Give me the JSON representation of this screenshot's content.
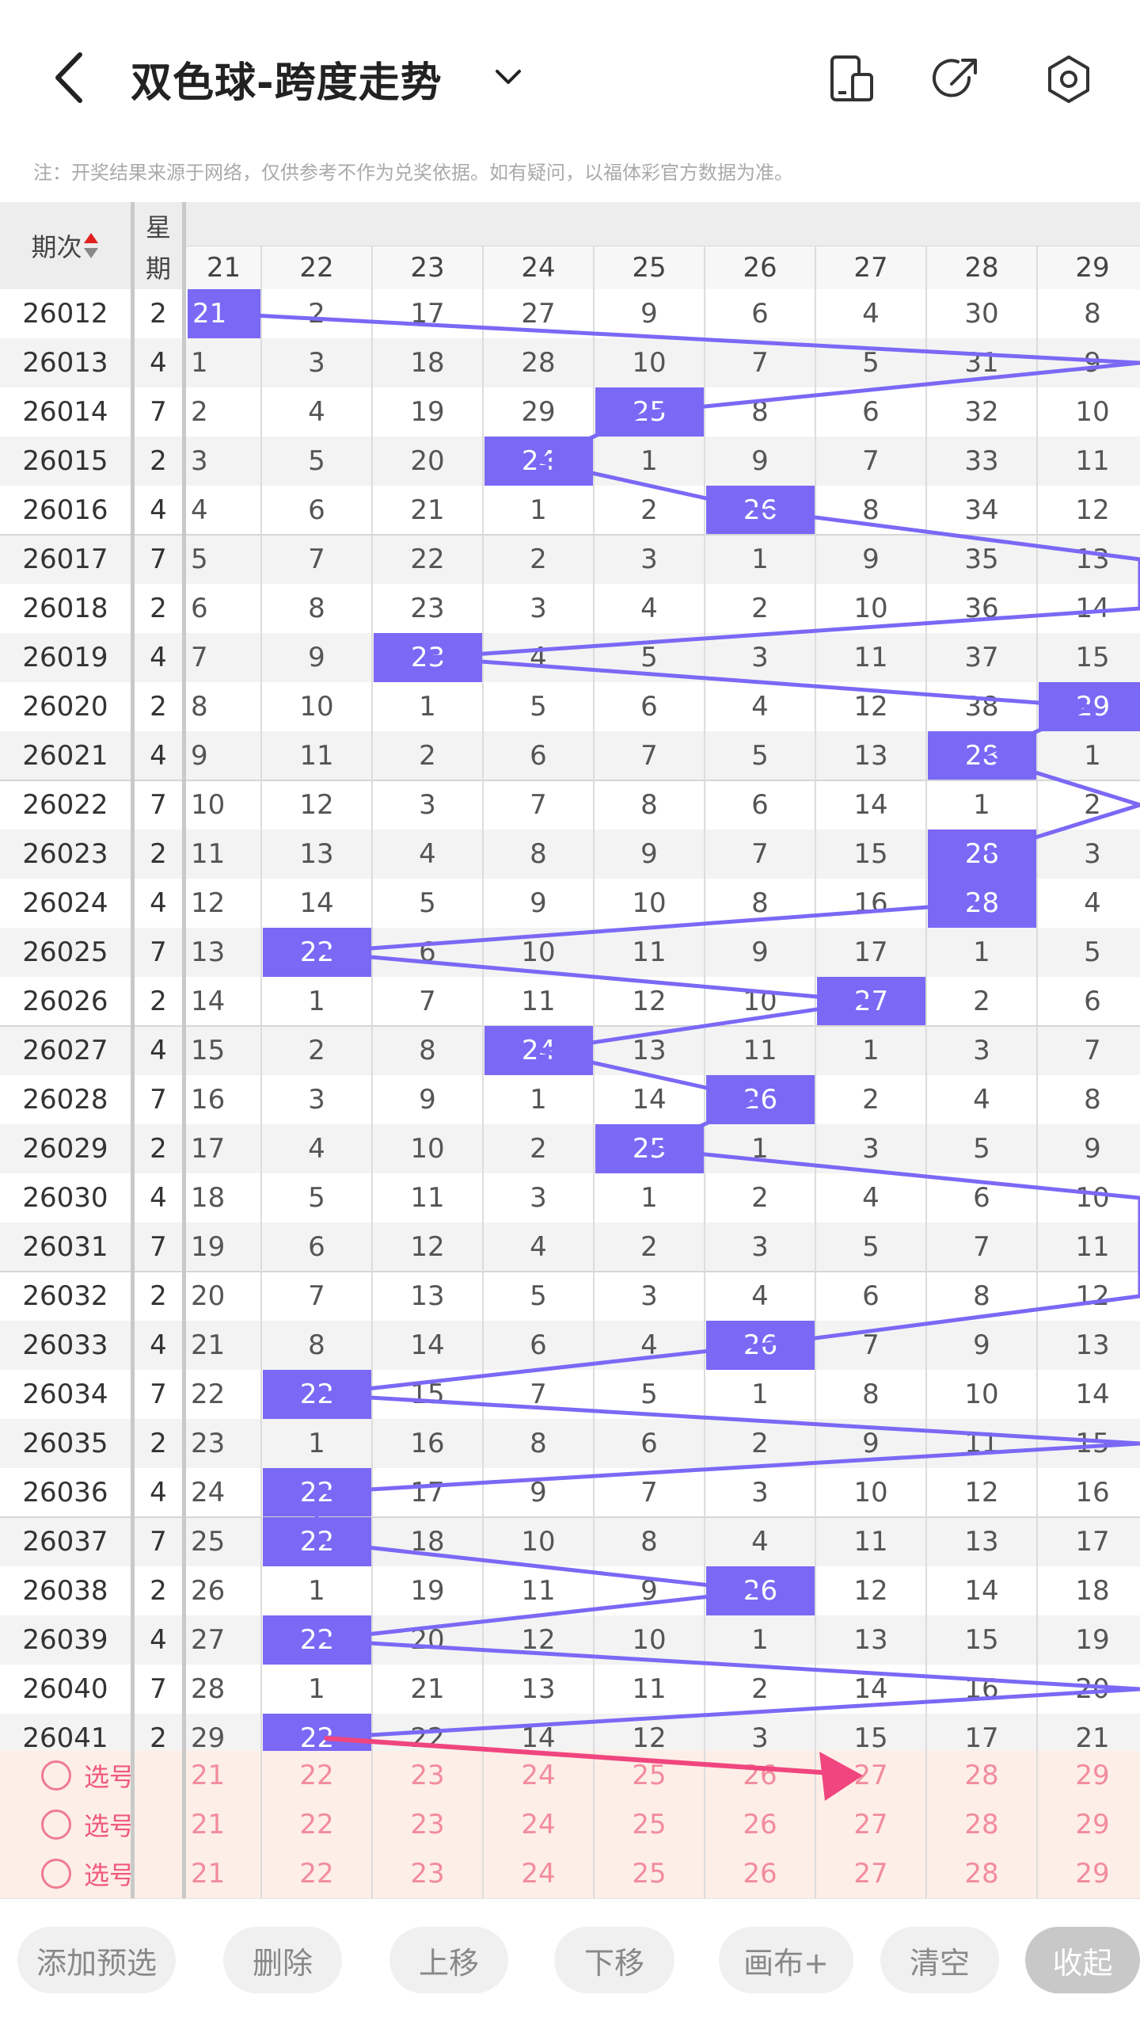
{
  "header": {
    "title": "双色球-跨度走势",
    "icons": [
      "back-icon",
      "chevron-down-icon",
      "phone-layout-icon",
      "share-icon",
      "settings-icon"
    ]
  },
  "note": "注：开奖结果来源于网络，仅供参考不作为兑奖依据。如有疑问，以福体彩官方数据为准。",
  "table": {
    "header_period": "期次",
    "header_weekday_top": "星",
    "header_weekday_bottom": "期",
    "columns": [
      "21",
      "22",
      "23",
      "24",
      "25",
      "26",
      "27",
      "28",
      "29"
    ],
    "rows": [
      {
        "period": "26012",
        "weekday": "2",
        "hit": 0,
        "cells": [
          "21",
          "2",
          "17",
          "27",
          "9",
          "6",
          "4",
          "30",
          "8"
        ]
      },
      {
        "period": "26013",
        "weekday": "4",
        "hit": -1,
        "cells": [
          "1",
          "3",
          "18",
          "28",
          "10",
          "7",
          "5",
          "31",
          "9"
        ]
      },
      {
        "period": "26014",
        "weekday": "7",
        "hit": 4,
        "cells": [
          "2",
          "4",
          "19",
          "29",
          "25",
          "8",
          "6",
          "32",
          "10"
        ]
      },
      {
        "period": "26015",
        "weekday": "2",
        "hit": 3,
        "cells": [
          "3",
          "5",
          "20",
          "24",
          "1",
          "9",
          "7",
          "33",
          "11"
        ]
      },
      {
        "period": "26016",
        "weekday": "4",
        "hit": 5,
        "cells": [
          "4",
          "6",
          "21",
          "1",
          "2",
          "26",
          "8",
          "34",
          "12"
        ]
      },
      {
        "period": "26017",
        "weekday": "7",
        "hit": -1,
        "cells": [
          "5",
          "7",
          "22",
          "2",
          "3",
          "1",
          "9",
          "35",
          "13"
        ]
      },
      {
        "period": "26018",
        "weekday": "2",
        "hit": -1,
        "cells": [
          "6",
          "8",
          "23",
          "3",
          "4",
          "2",
          "10",
          "36",
          "14"
        ]
      },
      {
        "period": "26019",
        "weekday": "4",
        "hit": 2,
        "cells": [
          "7",
          "9",
          "23",
          "4",
          "5",
          "3",
          "11",
          "37",
          "15"
        ]
      },
      {
        "period": "26020",
        "weekday": "2",
        "hit": 8,
        "cells": [
          "8",
          "10",
          "1",
          "5",
          "6",
          "4",
          "12",
          "38",
          "29"
        ]
      },
      {
        "period": "26021",
        "weekday": "4",
        "hit": 7,
        "cells": [
          "9",
          "11",
          "2",
          "6",
          "7",
          "5",
          "13",
          "28",
          "1"
        ]
      },
      {
        "period": "26022",
        "weekday": "7",
        "hit": -1,
        "cells": [
          "10",
          "12",
          "3",
          "7",
          "8",
          "6",
          "14",
          "1",
          "2"
        ]
      },
      {
        "period": "26023",
        "weekday": "2",
        "hit": 7,
        "cells": [
          "11",
          "13",
          "4",
          "8",
          "9",
          "7",
          "15",
          "28",
          "3"
        ]
      },
      {
        "period": "26024",
        "weekday": "4",
        "hit": 7,
        "cells": [
          "12",
          "14",
          "5",
          "9",
          "10",
          "8",
          "16",
          "28",
          "4"
        ]
      },
      {
        "period": "26025",
        "weekday": "7",
        "hit": 1,
        "cells": [
          "13",
          "22",
          "6",
          "10",
          "11",
          "9",
          "17",
          "1",
          "5"
        ]
      },
      {
        "period": "26026",
        "weekday": "2",
        "hit": 6,
        "cells": [
          "14",
          "1",
          "7",
          "11",
          "12",
          "10",
          "27",
          "2",
          "6"
        ]
      },
      {
        "period": "26027",
        "weekday": "4",
        "hit": 3,
        "cells": [
          "15",
          "2",
          "8",
          "24",
          "13",
          "11",
          "1",
          "3",
          "7"
        ]
      },
      {
        "period": "26028",
        "weekday": "7",
        "hit": 5,
        "cells": [
          "16",
          "3",
          "9",
          "1",
          "14",
          "26",
          "2",
          "4",
          "8"
        ]
      },
      {
        "period": "26029",
        "weekday": "2",
        "hit": 4,
        "cells": [
          "17",
          "4",
          "10",
          "2",
          "25",
          "1",
          "3",
          "5",
          "9"
        ]
      },
      {
        "period": "26030",
        "weekday": "4",
        "hit": -1,
        "cells": [
          "18",
          "5",
          "11",
          "3",
          "1",
          "2",
          "4",
          "6",
          "10"
        ]
      },
      {
        "period": "26031",
        "weekday": "7",
        "hit": -1,
        "cells": [
          "19",
          "6",
          "12",
          "4",
          "2",
          "3",
          "5",
          "7",
          "11"
        ]
      },
      {
        "period": "26032",
        "weekday": "2",
        "hit": -1,
        "cells": [
          "20",
          "7",
          "13",
          "5",
          "3",
          "4",
          "6",
          "8",
          "12"
        ]
      },
      {
        "period": "26033",
        "weekday": "4",
        "hit": 5,
        "cells": [
          "21",
          "8",
          "14",
          "6",
          "4",
          "26",
          "7",
          "9",
          "13"
        ]
      },
      {
        "period": "26034",
        "weekday": "7",
        "hit": 1,
        "cells": [
          "22",
          "22",
          "15",
          "7",
          "5",
          "1",
          "8",
          "10",
          "14"
        ]
      },
      {
        "period": "26035",
        "weekday": "2",
        "hit": -1,
        "cells": [
          "23",
          "1",
          "16",
          "8",
          "6",
          "2",
          "9",
          "11",
          "15"
        ]
      },
      {
        "period": "26036",
        "weekday": "4",
        "hit": 1,
        "cells": [
          "24",
          "22",
          "17",
          "9",
          "7",
          "3",
          "10",
          "12",
          "16"
        ]
      },
      {
        "period": "26037",
        "weekday": "7",
        "hit": 1,
        "cells": [
          "25",
          "22",
          "18",
          "10",
          "8",
          "4",
          "11",
          "13",
          "17"
        ]
      },
      {
        "period": "26038",
        "weekday": "2",
        "hit": 5,
        "cells": [
          "26",
          "1",
          "19",
          "11",
          "9",
          "26",
          "12",
          "14",
          "18"
        ]
      },
      {
        "period": "26039",
        "weekday": "4",
        "hit": 1,
        "cells": [
          "27",
          "22",
          "20",
          "12",
          "10",
          "1",
          "13",
          "15",
          "19"
        ]
      },
      {
        "period": "26040",
        "weekday": "7",
        "hit": -1,
        "cells": [
          "28",
          "1",
          "21",
          "13",
          "11",
          "2",
          "14",
          "16",
          "20"
        ]
      },
      {
        "period": "26041",
        "weekday": "2",
        "hit": 1,
        "cells": [
          "29",
          "22",
          "22",
          "14",
          "12",
          "3",
          "15",
          "17",
          "21"
        ]
      }
    ],
    "pick_rows": [
      {
        "label": "选号",
        "cells": [
          "21",
          "22",
          "23",
          "24",
          "25",
          "26",
          "27",
          "28",
          "29"
        ]
      },
      {
        "label": "选号",
        "cells": [
          "21",
          "22",
          "23",
          "24",
          "25",
          "26",
          "27",
          "28",
          "29"
        ]
      },
      {
        "label": "选号",
        "cells": [
          "21",
          "22",
          "23",
          "24",
          "25",
          "26",
          "27",
          "28",
          "29"
        ]
      }
    ]
  },
  "toolbar": {
    "buttons": [
      "添加预选",
      "删除",
      "上移",
      "下移",
      "画布+",
      "清空",
      "收起"
    ]
  },
  "colors": {
    "highlight": "#7b68f5",
    "trend_line": "#7b68f5",
    "prediction_arrow": "#f0457e",
    "pick_background": "#fdeee8"
  }
}
